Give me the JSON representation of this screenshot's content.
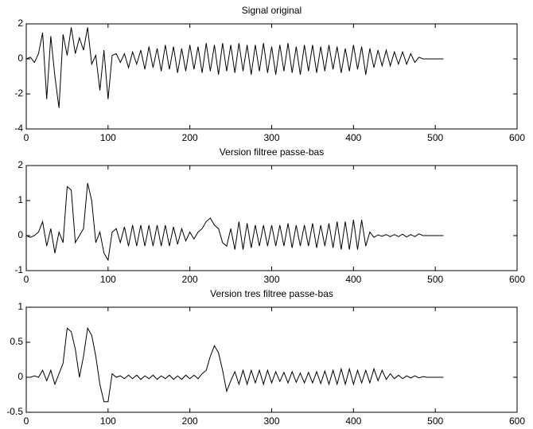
{
  "chart_data": [
    {
      "type": "line",
      "title": "Signal original",
      "x": [
        0,
        5,
        10,
        15,
        20,
        25,
        30,
        35,
        40,
        45,
        50,
        55,
        60,
        65,
        70,
        75,
        80,
        85,
        90,
        95,
        100,
        105,
        110,
        115,
        120,
        125,
        130,
        135,
        140,
        145,
        150,
        155,
        160,
        165,
        170,
        175,
        180,
        185,
        190,
        195,
        200,
        205,
        210,
        215,
        220,
        225,
        230,
        235,
        240,
        245,
        250,
        255,
        260,
        265,
        270,
        275,
        280,
        285,
        290,
        295,
        300,
        305,
        310,
        315,
        320,
        325,
        330,
        335,
        340,
        345,
        350,
        355,
        360,
        365,
        370,
        375,
        380,
        385,
        390,
        395,
        400,
        405,
        410,
        415,
        420,
        425,
        430,
        435,
        440,
        445,
        450,
        455,
        460,
        465,
        470,
        475,
        480,
        485,
        490,
        495,
        500,
        505,
        510
      ],
      "series": [
        {
          "color": "#000000",
          "values": [
            0,
            0.1,
            -0.2,
            0.3,
            1.5,
            -2.3,
            1.3,
            -1,
            -2.8,
            1.4,
            0.2,
            1.8,
            0.3,
            1.2,
            0.5,
            1.8,
            -0.3,
            0.2,
            -1.8,
            0.5,
            -2.3,
            0.2,
            0.3,
            -0.2,
            0.3,
            -0.5,
            0.4,
            -0.3,
            0.5,
            -0.6,
            0.7,
            -0.5,
            0.6,
            -0.7,
            0.8,
            -0.6,
            0.7,
            -0.8,
            0.6,
            -0.7,
            0.8,
            -0.6,
            0.7,
            -0.8,
            0.9,
            -0.7,
            0.8,
            -0.9,
            0.9,
            -0.7,
            0.8,
            -0.8,
            0.9,
            -0.7,
            0.8,
            -0.9,
            0.8,
            -0.7,
            0.9,
            -0.8,
            0.7,
            -0.9,
            0.8,
            -0.7,
            0.9,
            -0.8,
            0.7,
            -0.9,
            0.8,
            -0.7,
            0.8,
            -0.8,
            0.7,
            -0.7,
            0.8,
            -0.6,
            0.7,
            -0.8,
            0.6,
            -0.7,
            0.8,
            -0.6,
            0.7,
            -0.9,
            0.6,
            -0.5,
            0.5,
            -0.4,
            0.5,
            -0.4,
            0.4,
            -0.3,
            0.4,
            -0.3,
            0.3,
            -0.2,
            0.1,
            0,
            0,
            0,
            0,
            0,
            0
          ]
        }
      ],
      "xlim": [
        0,
        600
      ],
      "xticks": [
        0,
        100,
        200,
        300,
        400,
        500,
        600
      ],
      "ylim": [
        -4,
        2
      ],
      "yticks": [
        -4,
        -2,
        0,
        2
      ]
    },
    {
      "type": "line",
      "title": "Version filtree passe-bas",
      "x": [
        0,
        5,
        10,
        15,
        20,
        25,
        30,
        35,
        40,
        45,
        50,
        55,
        60,
        65,
        70,
        75,
        80,
        85,
        90,
        95,
        100,
        105,
        110,
        115,
        120,
        125,
        130,
        135,
        140,
        145,
        150,
        155,
        160,
        165,
        170,
        175,
        180,
        185,
        190,
        195,
        200,
        205,
        210,
        215,
        220,
        225,
        230,
        235,
        240,
        245,
        250,
        255,
        260,
        265,
        270,
        275,
        280,
        285,
        290,
        295,
        300,
        305,
        310,
        315,
        320,
        325,
        330,
        335,
        340,
        345,
        350,
        355,
        360,
        365,
        370,
        375,
        380,
        385,
        390,
        395,
        400,
        405,
        410,
        415,
        420,
        425,
        430,
        435,
        440,
        445,
        450,
        455,
        460,
        465,
        470,
        475,
        480,
        485,
        490,
        495,
        500,
        505,
        510
      ],
      "series": [
        {
          "color": "#000000",
          "values": [
            0,
            -0.05,
            0,
            0.1,
            0.4,
            -0.3,
            0.2,
            -0.5,
            0.1,
            -0.2,
            1.4,
            1.3,
            -0.2,
            0,
            0.2,
            1.5,
            1,
            -0.2,
            0.1,
            -0.5,
            -0.7,
            0.1,
            0.2,
            -0.2,
            0.25,
            -0.3,
            0.3,
            -0.3,
            0.3,
            -0.3,
            0.3,
            -0.3,
            0.3,
            -0.3,
            0.3,
            -0.3,
            0.25,
            -0.25,
            0.2,
            -0.15,
            0.1,
            -0.1,
            0.1,
            0.2,
            0.4,
            0.5,
            0.3,
            0.2,
            -0.2,
            -0.3,
            0.2,
            -0.4,
            0.4,
            -0.4,
            0.35,
            -0.35,
            0.3,
            -0.3,
            0.3,
            -0.3,
            0.3,
            -0.3,
            0.3,
            -0.3,
            0.35,
            -0.35,
            0.3,
            -0.3,
            0.3,
            -0.3,
            0.35,
            -0.35,
            0.3,
            -0.3,
            0.35,
            -0.35,
            0.4,
            -0.4,
            0.4,
            -0.4,
            0.45,
            -0.4,
            0.45,
            -0.3,
            0.1,
            -0.05,
            0.02,
            -0.02,
            0.03,
            -0.03,
            0.03,
            -0.03,
            0.04,
            -0.04,
            0.03,
            -0.03,
            0.05,
            0,
            0,
            0,
            0,
            0,
            0
          ]
        }
      ],
      "xlim": [
        0,
        600
      ],
      "xticks": [
        0,
        100,
        200,
        300,
        400,
        500,
        600
      ],
      "ylim": [
        -1,
        2
      ],
      "yticks": [
        -1,
        0,
        1,
        2
      ]
    },
    {
      "type": "line",
      "title": "Version tres filtree passe-bas",
      "x": [
        0,
        5,
        10,
        15,
        20,
        25,
        30,
        35,
        40,
        45,
        50,
        55,
        60,
        65,
        70,
        75,
        80,
        85,
        90,
        95,
        100,
        105,
        110,
        115,
        120,
        125,
        130,
        135,
        140,
        145,
        150,
        155,
        160,
        165,
        170,
        175,
        180,
        185,
        190,
        195,
        200,
        205,
        210,
        215,
        220,
        225,
        230,
        235,
        240,
        245,
        250,
        255,
        260,
        265,
        270,
        275,
        280,
        285,
        290,
        295,
        300,
        305,
        310,
        315,
        320,
        325,
        330,
        335,
        340,
        345,
        350,
        355,
        360,
        365,
        370,
        375,
        380,
        385,
        390,
        395,
        400,
        405,
        410,
        415,
        420,
        425,
        430,
        435,
        440,
        445,
        450,
        455,
        460,
        465,
        470,
        475,
        480,
        485,
        490,
        495,
        500,
        505,
        510
      ],
      "series": [
        {
          "color": "#000000",
          "values": [
            0,
            0,
            0.02,
            0,
            0.1,
            -0.05,
            0.1,
            -0.1,
            0.05,
            0.2,
            0.7,
            0.65,
            0.4,
            0,
            0.3,
            0.7,
            0.6,
            0.3,
            -0.1,
            -0.35,
            -0.35,
            0.05,
            0,
            0.02,
            -0.02,
            0.03,
            -0.02,
            0.03,
            -0.03,
            0.02,
            -0.02,
            0.03,
            -0.03,
            0.02,
            -0.02,
            0.03,
            -0.03,
            0.02,
            -0.03,
            0.03,
            -0.02,
            0.03,
            -0.02,
            0.05,
            0.1,
            0.3,
            0.45,
            0.35,
            0.1,
            -0.2,
            -0.05,
            0.08,
            -0.1,
            0.1,
            -0.1,
            0.1,
            -0.08,
            0.1,
            -0.1,
            0.1,
            -0.08,
            0.08,
            -0.06,
            0.07,
            -0.08,
            0.08,
            -0.07,
            0.06,
            -0.08,
            0.07,
            -0.08,
            0.08,
            -0.09,
            0.09,
            -0.1,
            0.1,
            -0.1,
            0.12,
            -0.1,
            0.12,
            -0.1,
            0.1,
            -0.08,
            0.1,
            -0.08,
            0.12,
            -0.05,
            0.1,
            -0.03,
            0.05,
            -0.02,
            0.03,
            -0.02,
            0.02,
            -0.01,
            0.02,
            -0.01,
            0.01,
            0,
            0,
            0,
            0,
            0
          ]
        }
      ],
      "xlim": [
        0,
        600
      ],
      "xticks": [
        0,
        100,
        200,
        300,
        400,
        500,
        600
      ],
      "ylim": [
        -0.5,
        1
      ],
      "yticks": [
        -0.5,
        0,
        0.5,
        1
      ]
    }
  ]
}
